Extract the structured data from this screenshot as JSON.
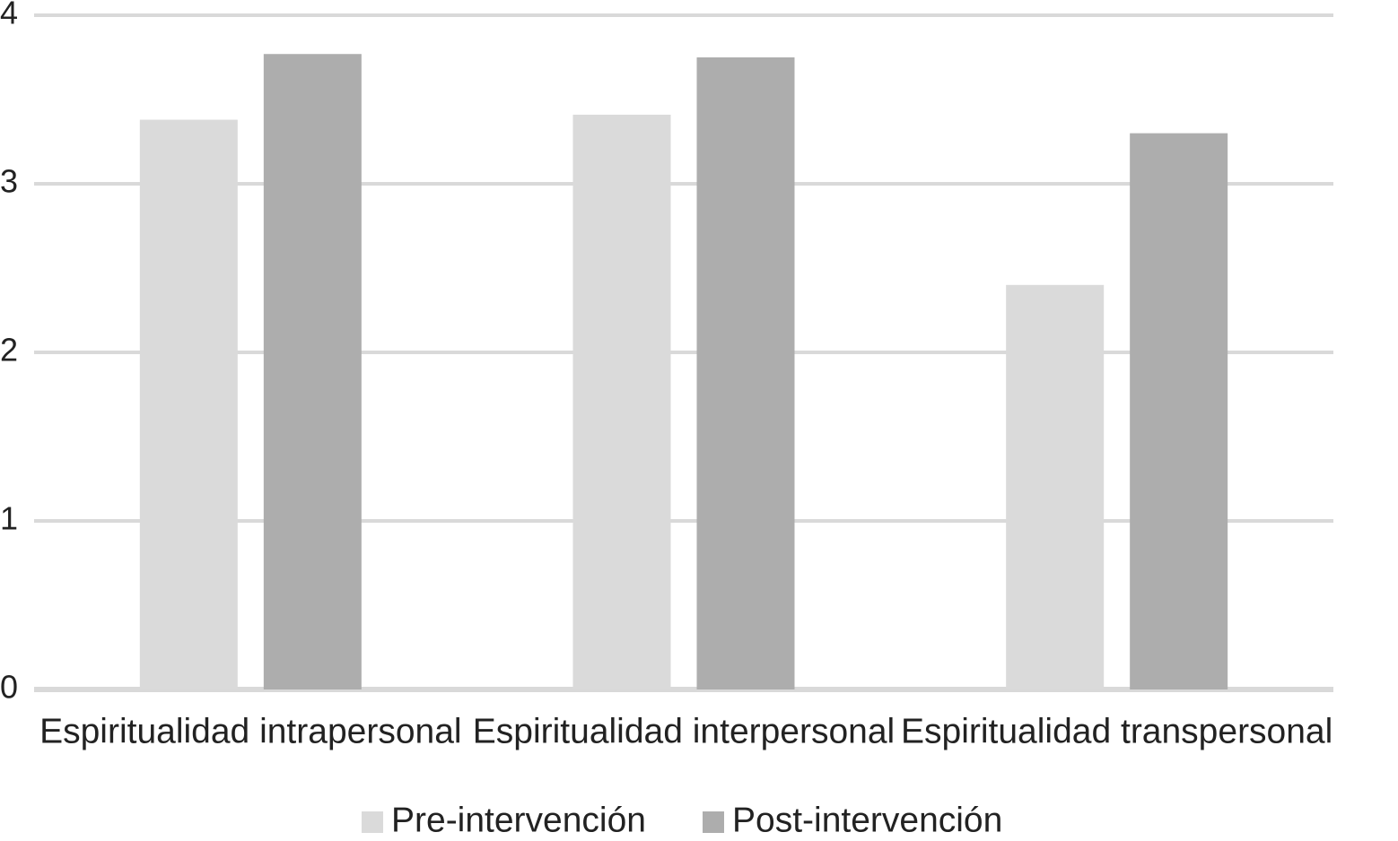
{
  "chart_data": {
    "type": "bar",
    "categories": [
      "Espiritualidad intrapersonal",
      "Espiritualidad interpersonal",
      "Espiritualidad transpersonal"
    ],
    "series": [
      {
        "name": "Pre-intervención",
        "color": "#dadada",
        "values": [
          3.38,
          3.41,
          2.4
        ]
      },
      {
        "name": "Post-intervención",
        "color": "#adadad",
        "values": [
          3.77,
          3.75,
          3.3
        ]
      }
    ],
    "ylim": [
      0,
      4
    ],
    "yticks": [
      0,
      1,
      2,
      3,
      4
    ],
    "grid": true,
    "legend": "bottom"
  }
}
